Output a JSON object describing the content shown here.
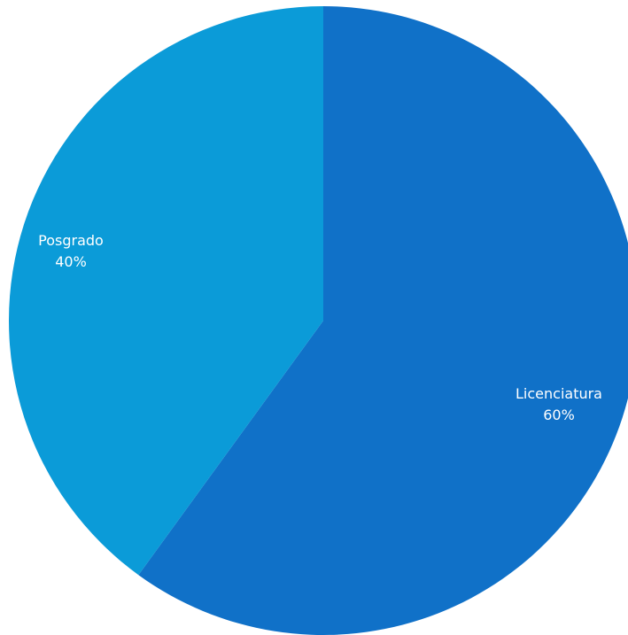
{
  "chart_data": {
    "type": "pie",
    "title": "",
    "slices": [
      {
        "label": "Licenciatura",
        "value": 60,
        "value_label": "60%",
        "color": "#1071C8"
      },
      {
        "label": "Posgrado",
        "value": 40,
        "value_label": "40%",
        "color": "#0B9BD8"
      }
    ],
    "start": "top",
    "direction": "clockwise",
    "legend": "none"
  }
}
